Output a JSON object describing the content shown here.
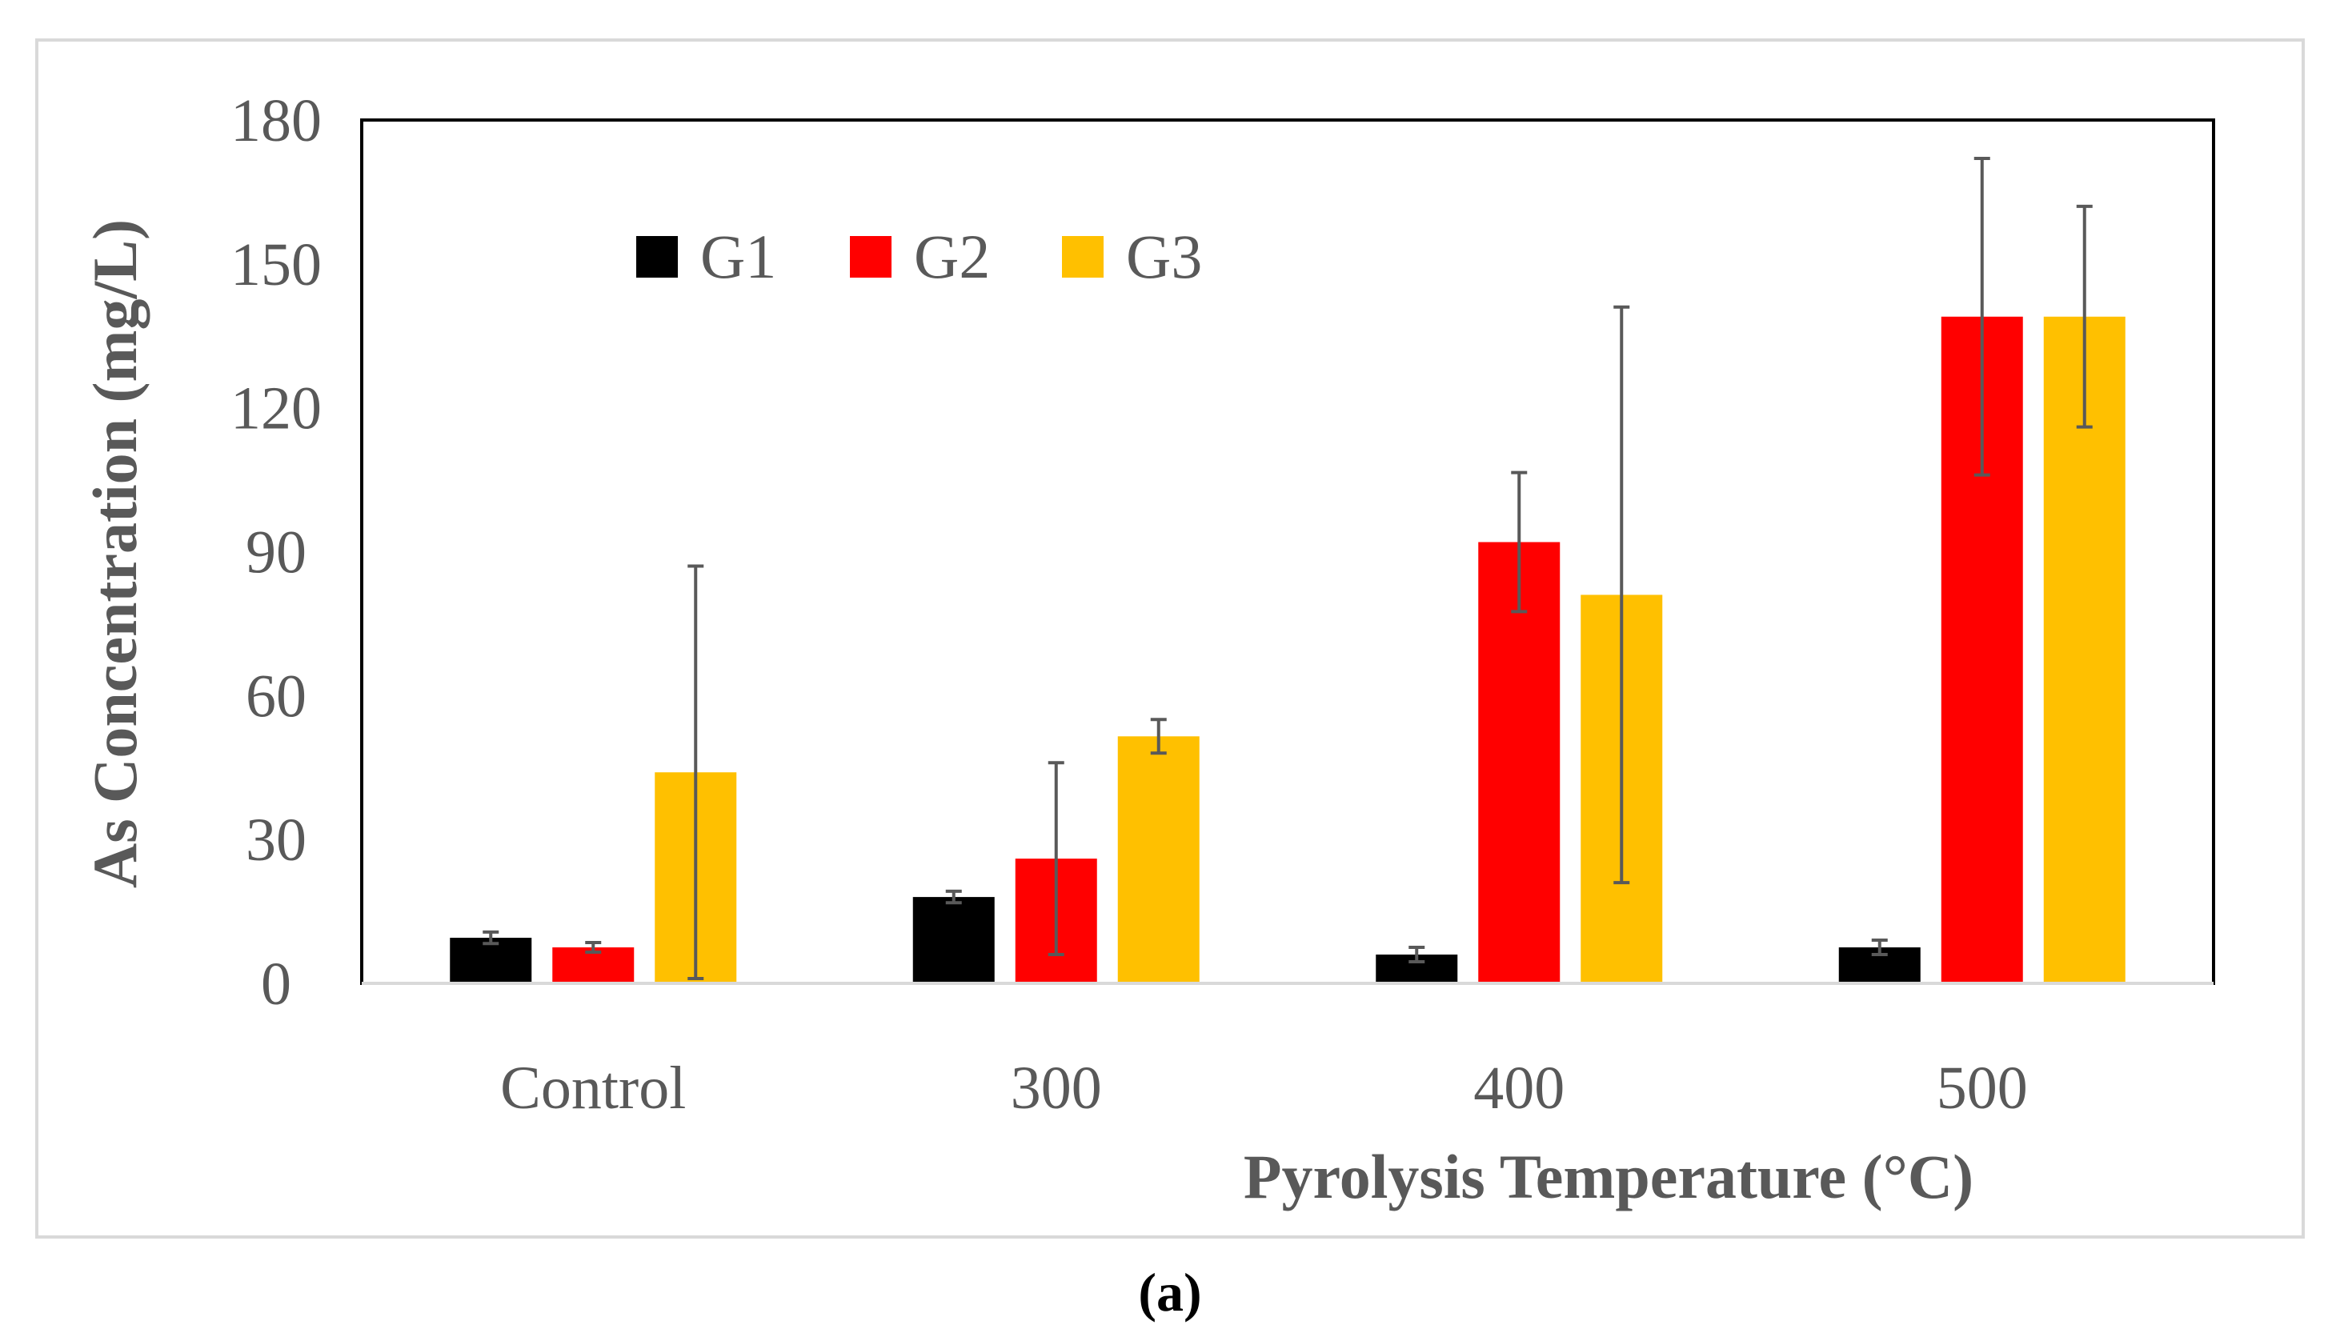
{
  "chart_data": {
    "type": "bar",
    "title": "",
    "xlabel": "Pyrolysis Temperature (°C)",
    "ylabel": "As Concentration (mg/L)",
    "ylim": [
      0,
      180
    ],
    "yticks": [
      0,
      30,
      60,
      90,
      120,
      150,
      180
    ],
    "categories": [
      "Control",
      "300",
      "400",
      "500"
    ],
    "legend_position": "top-left",
    "series": [
      {
        "name": "G1",
        "color": "#000000",
        "values": [
          9.5,
          18,
          6,
          7.5
        ],
        "errors": [
          1.2,
          1.2,
          1.5,
          1.5
        ]
      },
      {
        "name": "G2",
        "color": "#ff0000",
        "values": [
          7.5,
          26,
          92,
          139
        ],
        "errors": [
          1,
          20,
          14.5,
          33
        ]
      },
      {
        "name": "G3",
        "color": "#ffc000",
        "values": [
          44,
          51.5,
          81,
          139
        ],
        "errors": [
          43,
          3.5,
          60,
          23
        ]
      }
    ],
    "caption": "(a)"
  }
}
